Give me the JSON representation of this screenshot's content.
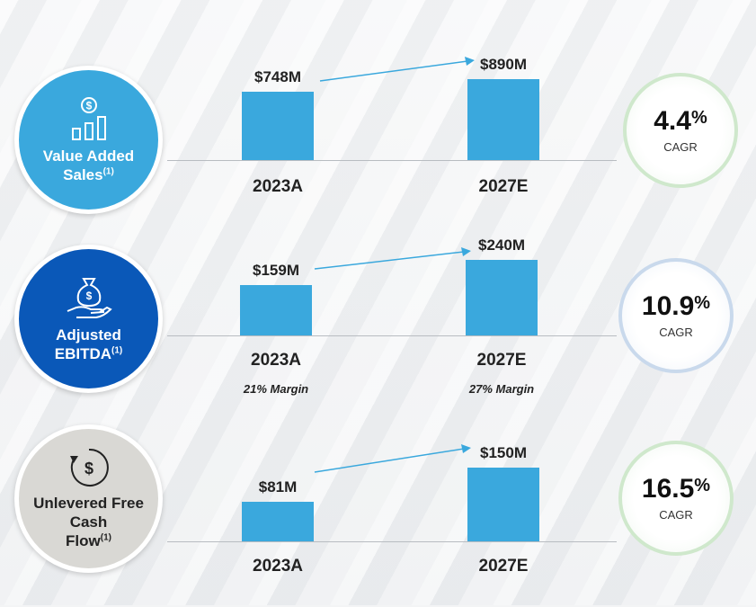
{
  "colors": {
    "bar": "#3aa8dd",
    "metric_1_bg": "#3aa8dd",
    "metric_2_bg": "#0a58b8",
    "metric_3_bg": "#d9d8d4",
    "arrow": "#3aa8dd"
  },
  "metrics": [
    {
      "label_line1": "Value Added",
      "label_line2": "Sales",
      "label_line3": "",
      "footnote": "(1)",
      "icon": "dollar-growth-chart-icon",
      "cagr": "4.4",
      "cagr_suffix": "%",
      "cagr_label": "CAGR"
    },
    {
      "label_line1": "Adjusted",
      "label_line2": "EBITDA",
      "label_line3": "",
      "footnote": "(1)",
      "icon": "money-bag-hand-icon",
      "cagr": "10.9",
      "cagr_suffix": "%",
      "cagr_label": "CAGR"
    },
    {
      "label_line1": "Unlevered Free",
      "label_line2": "Cash",
      "label_line3": "Flow",
      "footnote": "(1)",
      "icon": "dollar-cycle-icon",
      "cagr": "16.5",
      "cagr_suffix": "%",
      "cagr_label": "CAGR"
    }
  ],
  "chart_data": [
    {
      "type": "bar",
      "categories": [
        "2023A",
        "2027E"
      ],
      "values": [
        748,
        890
      ],
      "value_labels": [
        "$748M",
        "$890M"
      ],
      "units": "$M"
    },
    {
      "type": "bar",
      "categories": [
        "2023A",
        "2027E"
      ],
      "values": [
        159,
        240
      ],
      "value_labels": [
        "$159M",
        "$240M"
      ],
      "annotations": [
        "21% Margin",
        "27% Margin"
      ],
      "units": "$M"
    },
    {
      "type": "bar",
      "categories": [
        "2023A",
        "2027E"
      ],
      "values": [
        81,
        150
      ],
      "value_labels": [
        "$81M",
        "$150M"
      ],
      "units": "$M"
    }
  ]
}
